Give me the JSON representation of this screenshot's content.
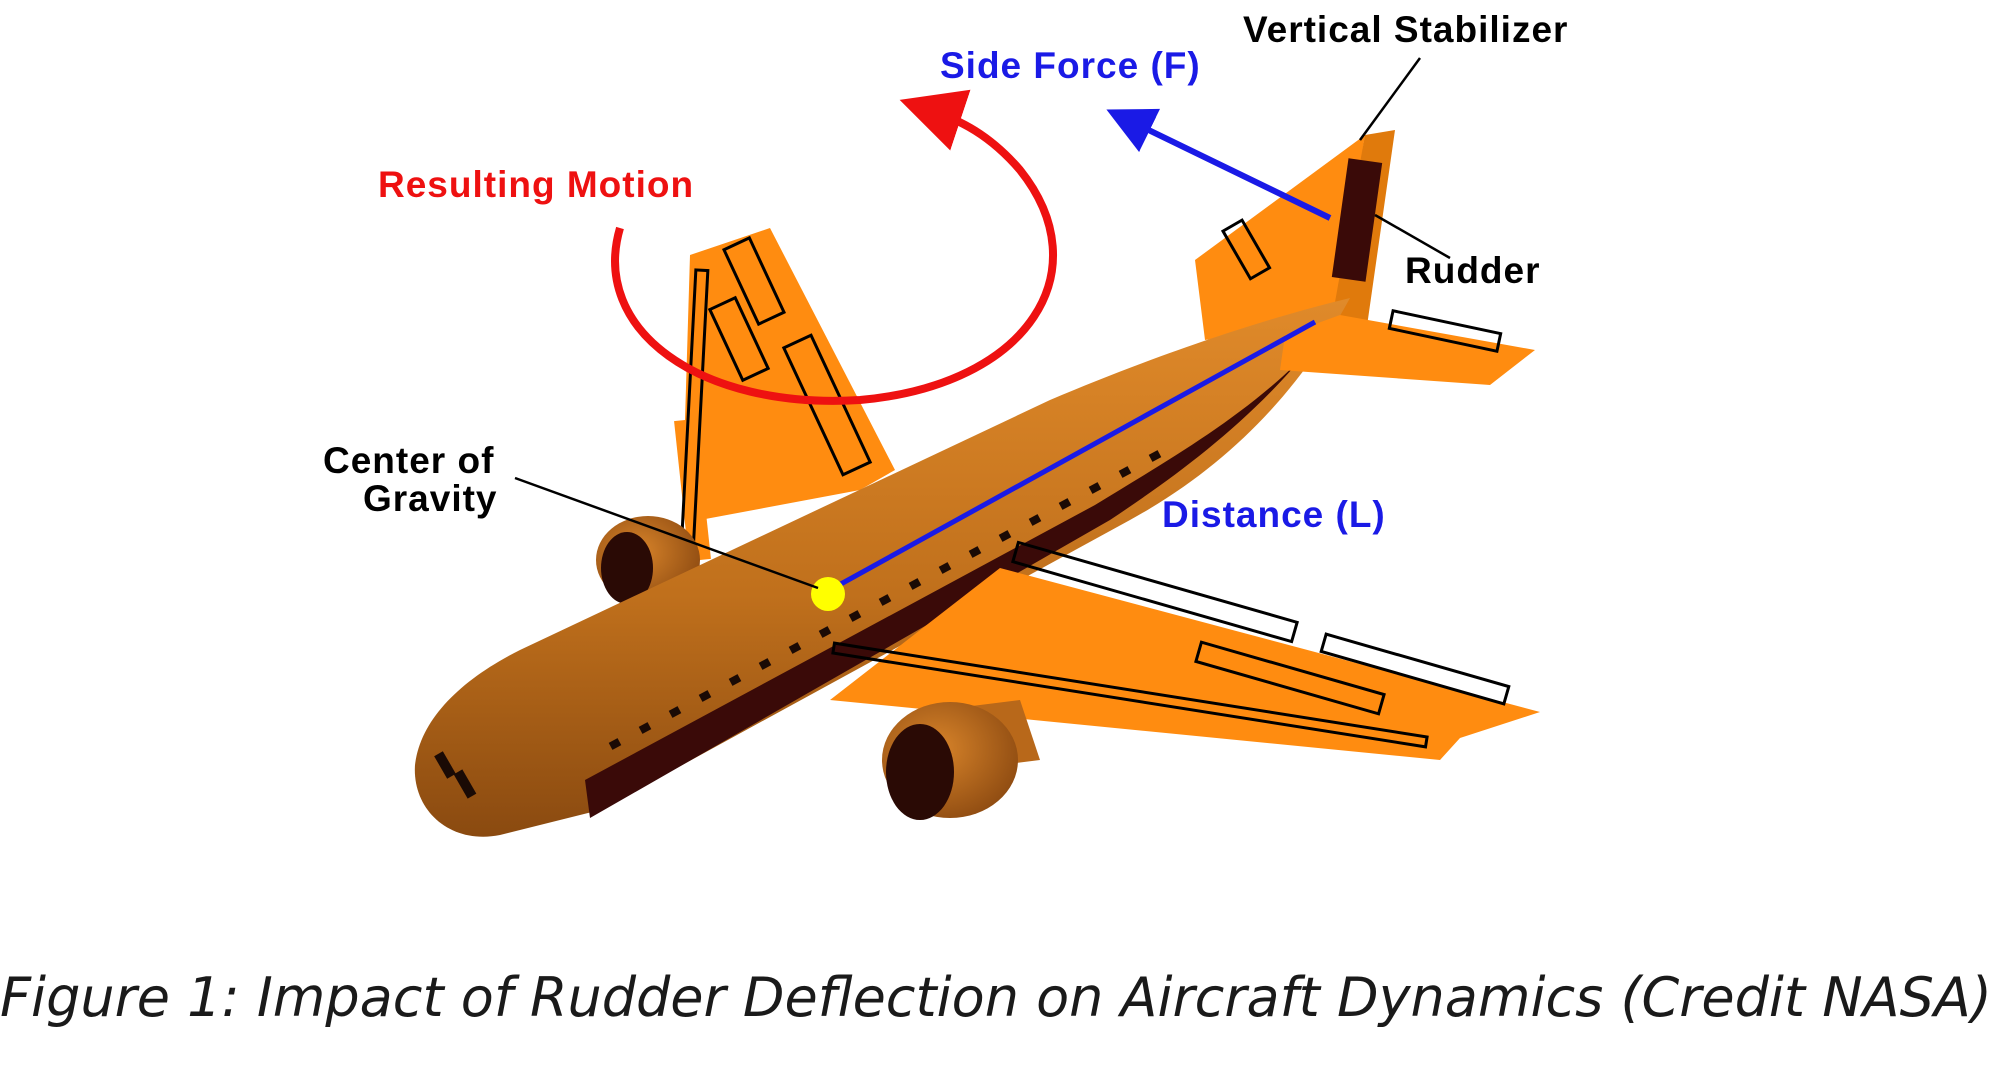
{
  "labels": {
    "vertical_stabilizer": "Vertical Stabilizer",
    "side_force": "Side Force (F)",
    "resulting_motion": "Resulting Motion",
    "rudder": "Rudder",
    "center_of_gravity_line1": "Center of",
    "center_of_gravity_line2": "Gravity",
    "distance": "Distance (L)"
  },
  "caption": "Figure 1: Impact of Rudder Deflection on Aircraft Dynamics (Credit NASA)",
  "colors": {
    "fuselage": "#c8751f",
    "wing": "#ff8c10",
    "dark_stripe": "#3a0a08",
    "rudder": "#3a0a08",
    "motion_arrow": "#ee1111",
    "force_arrow": "#1a1ae6",
    "cg_marker": "#ffff00",
    "label_black": "#000000"
  },
  "icons": {
    "motion": "curved-arrow-icon",
    "force": "straight-arrow-icon",
    "cg": "dot-icon"
  }
}
